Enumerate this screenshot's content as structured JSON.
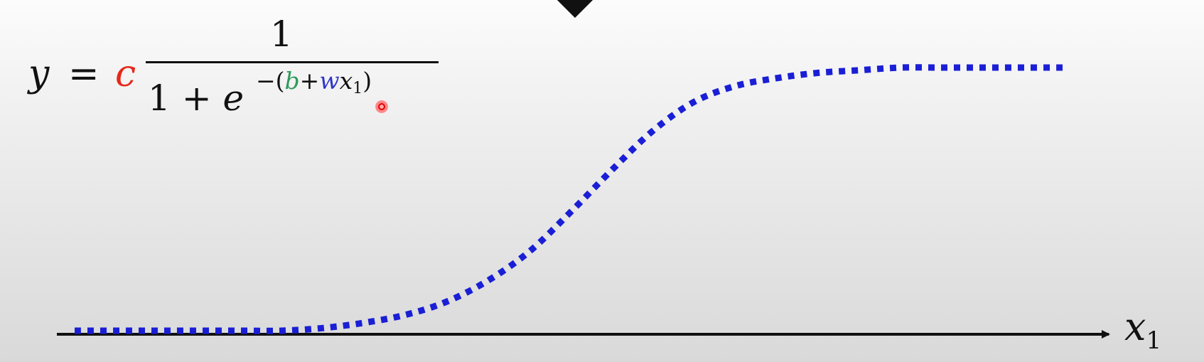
{
  "formula": {
    "lhs": "y",
    "equals": "=",
    "coefficient": "c",
    "numerator": "1",
    "denominator_prefix": "1 + ",
    "base": "e",
    "exponent": {
      "minus_paren": "−(",
      "b": "b",
      "plus": "+",
      "w": "w",
      "x": "x",
      "sub": "1",
      "close": ")"
    },
    "colors": {
      "c": "#e5281b",
      "b": "#2e9a5b",
      "w": "#2f36c9"
    }
  },
  "axis": {
    "x_label": "x",
    "x_label_sub": "1"
  },
  "chart_data": {
    "type": "line",
    "title": "",
    "xlabel": "x1",
    "ylabel": "",
    "line_style": "dotted",
    "line_color": "#1a1fd6",
    "series": [
      {
        "x": [
          0,
          1,
          2,
          3,
          4,
          5,
          6,
          7,
          8,
          9,
          10,
          11,
          12,
          13,
          14,
          15,
          16,
          17,
          18,
          19,
          20,
          21,
          22,
          23,
          24
        ],
        "values": [
          0.0,
          0.0,
          0.0,
          0.0,
          0.0,
          0.0,
          0.01,
          0.03,
          0.06,
          0.11,
          0.19,
          0.3,
          0.45,
          0.61,
          0.76,
          0.87,
          0.93,
          0.96,
          0.98,
          0.99,
          1.0,
          1.0,
          1.0,
          1.0,
          1.0
        ]
      }
    ],
    "xlim": [
      0,
      24
    ],
    "ylim": [
      0,
      1
    ],
    "grid": false
  }
}
